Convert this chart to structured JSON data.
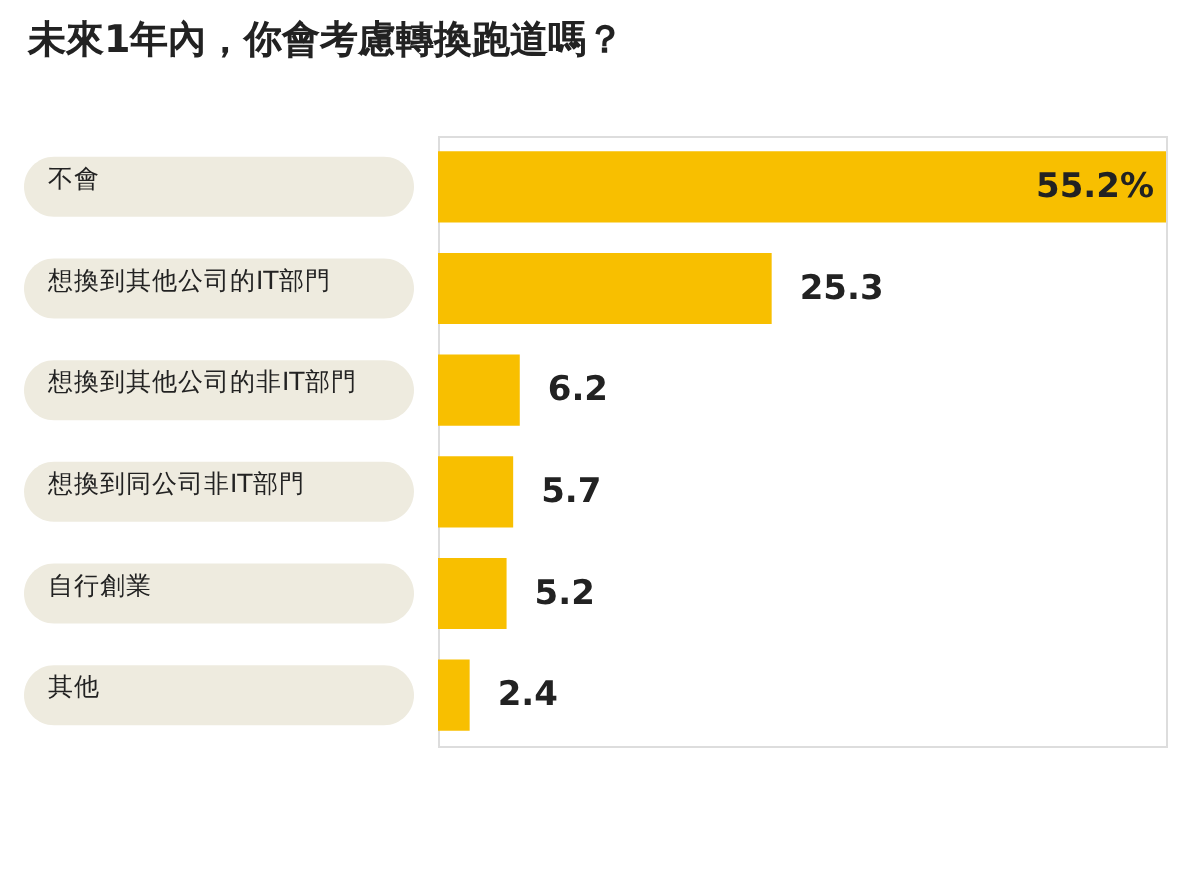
{
  "chart_data": {
    "type": "bar",
    "orientation": "horizontal",
    "title": "未來1年內，你會考慮轉換跑道嗎？",
    "categories": [
      "不會",
      "想換到其他公司的IT部門",
      "想換到其他公司的非IT部門",
      "想換到同公司非IT部門",
      "自行創業",
      "其他"
    ],
    "values": [
      55.2,
      25.3,
      6.2,
      5.7,
      5.2,
      2.4
    ],
    "value_labels": [
      "55.2%",
      "25.3",
      "6.2",
      "5.7",
      "5.2",
      "2.4"
    ],
    "color": "#f8bf00",
    "grid": false
  }
}
